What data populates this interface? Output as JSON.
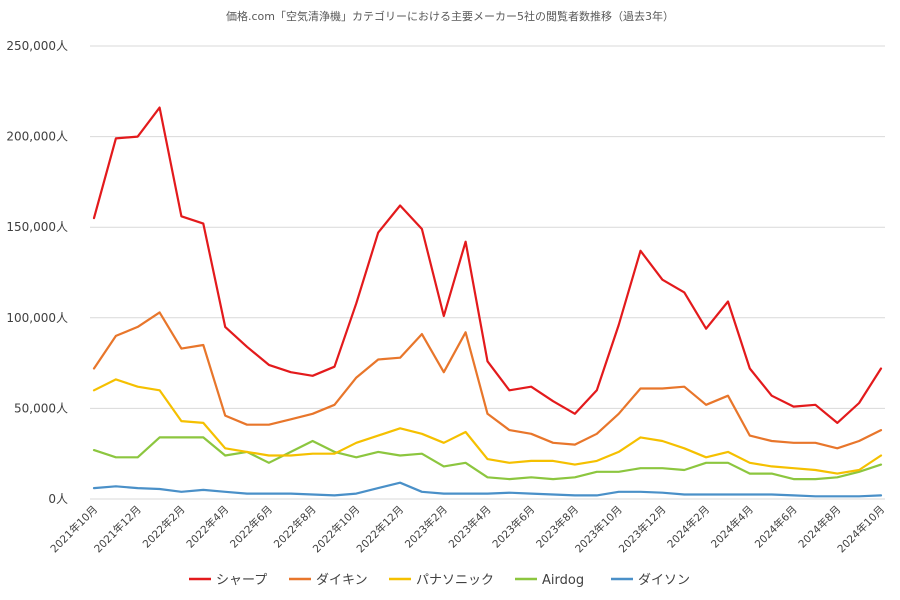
{
  "chart_data": {
    "type": "line",
    "title": "価格.com「空気清浄機」カテゴリーにおける主要メーカー5社の閲覧者数推移（過去3年）",
    "xlabel": "",
    "ylabel": "",
    "ylim": [
      0,
      250000
    ],
    "yticks": [
      "0人",
      "50,000人",
      "100,000人",
      "150,000人",
      "200,000人",
      "250,000人"
    ],
    "grid": true,
    "legend_position": "bottom",
    "categories": [
      "2021年10月",
      "2021年11月",
      "2021年12月",
      "2022年1月",
      "2022年2月",
      "2022年3月",
      "2022年4月",
      "2022年5月",
      "2022年6月",
      "2022年7月",
      "2022年8月",
      "2022年9月",
      "2022年10月",
      "2022年11月",
      "2022年12月",
      "2023年1月",
      "2023年2月",
      "2023年3月",
      "2023年4月",
      "2023年5月",
      "2023年6月",
      "2023年7月",
      "2023年8月",
      "2023年9月",
      "2023年10月",
      "2023年11月",
      "2023年12月",
      "2024年1月",
      "2024年2月",
      "2024年3月",
      "2024年4月",
      "2024年5月",
      "2024年6月",
      "2024年7月",
      "2024年8月",
      "2024年9月",
      "2024年10月"
    ],
    "xtick_labels": [
      "2021年10月",
      "2021年12月",
      "2022年2月",
      "2022年4月",
      "2022年6月",
      "2022年8月",
      "2022年10月",
      "2022年12月",
      "2023年2月",
      "2023年4月",
      "2023年6月",
      "2023年8月",
      "2023年10月",
      "2023年12月",
      "2024年2月",
      "2024年4月",
      "2024年6月",
      "2024年8月",
      "2024年10月"
    ],
    "series": [
      {
        "name": "シャープ",
        "color": "#e31a1c",
        "values": [
          155000,
          199000,
          200000,
          216000,
          156000,
          152000,
          95000,
          84000,
          74000,
          70000,
          68000,
          73000,
          108000,
          147000,
          162000,
          149000,
          101000,
          142000,
          76000,
          60000,
          62000,
          54000,
          47000,
          60000,
          96000,
          137000,
          121000,
          114000,
          94000,
          109000,
          72000,
          57000,
          51000,
          52000,
          42000,
          53000,
          72000
        ]
      },
      {
        "name": "ダイキン",
        "color": "#e8762b",
        "values": [
          72000,
          90000,
          95000,
          103000,
          83000,
          85000,
          46000,
          41000,
          41000,
          44000,
          47000,
          52000,
          67000,
          77000,
          78000,
          91000,
          70000,
          92000,
          47000,
          38000,
          36000,
          31000,
          30000,
          36000,
          47000,
          61000,
          61000,
          62000,
          52000,
          57000,
          35000,
          32000,
          31000,
          31000,
          28000,
          32000,
          38000
        ]
      },
      {
        "name": "パナソニック",
        "color": "#f5c000",
        "values": [
          60000,
          66000,
          62000,
          60000,
          43000,
          42000,
          28000,
          26000,
          24000,
          24000,
          25000,
          25000,
          31000,
          35000,
          39000,
          36000,
          31000,
          37000,
          22000,
          20000,
          21000,
          21000,
          19000,
          21000,
          26000,
          34000,
          32000,
          28000,
          23000,
          26000,
          20000,
          18000,
          17000,
          16000,
          14000,
          16000,
          24000
        ]
      },
      {
        "name": "Airdog",
        "color": "#8cc63f",
        "values": [
          27000,
          23000,
          23000,
          34000,
          34000,
          34000,
          24000,
          26000,
          20000,
          26000,
          32000,
          26000,
          23000,
          26000,
          24000,
          25000,
          18000,
          20000,
          12000,
          11000,
          12000,
          11000,
          12000,
          15000,
          15000,
          17000,
          17000,
          16000,
          20000,
          20000,
          14000,
          14000,
          11000,
          11000,
          12000,
          15000,
          19000
        ]
      },
      {
        "name": "ダイソン",
        "color": "#4a90c8",
        "values": [
          6000,
          7000,
          6000,
          5500,
          4000,
          5000,
          4000,
          3000,
          3000,
          3000,
          2500,
          2000,
          3000,
          6000,
          9000,
          4000,
          3000,
          3000,
          3000,
          3500,
          3000,
          2500,
          2000,
          2000,
          4000,
          4000,
          3500,
          2500,
          2500,
          2500,
          2500,
          2500,
          2000,
          1500,
          1500,
          1500,
          2000
        ]
      }
    ]
  }
}
